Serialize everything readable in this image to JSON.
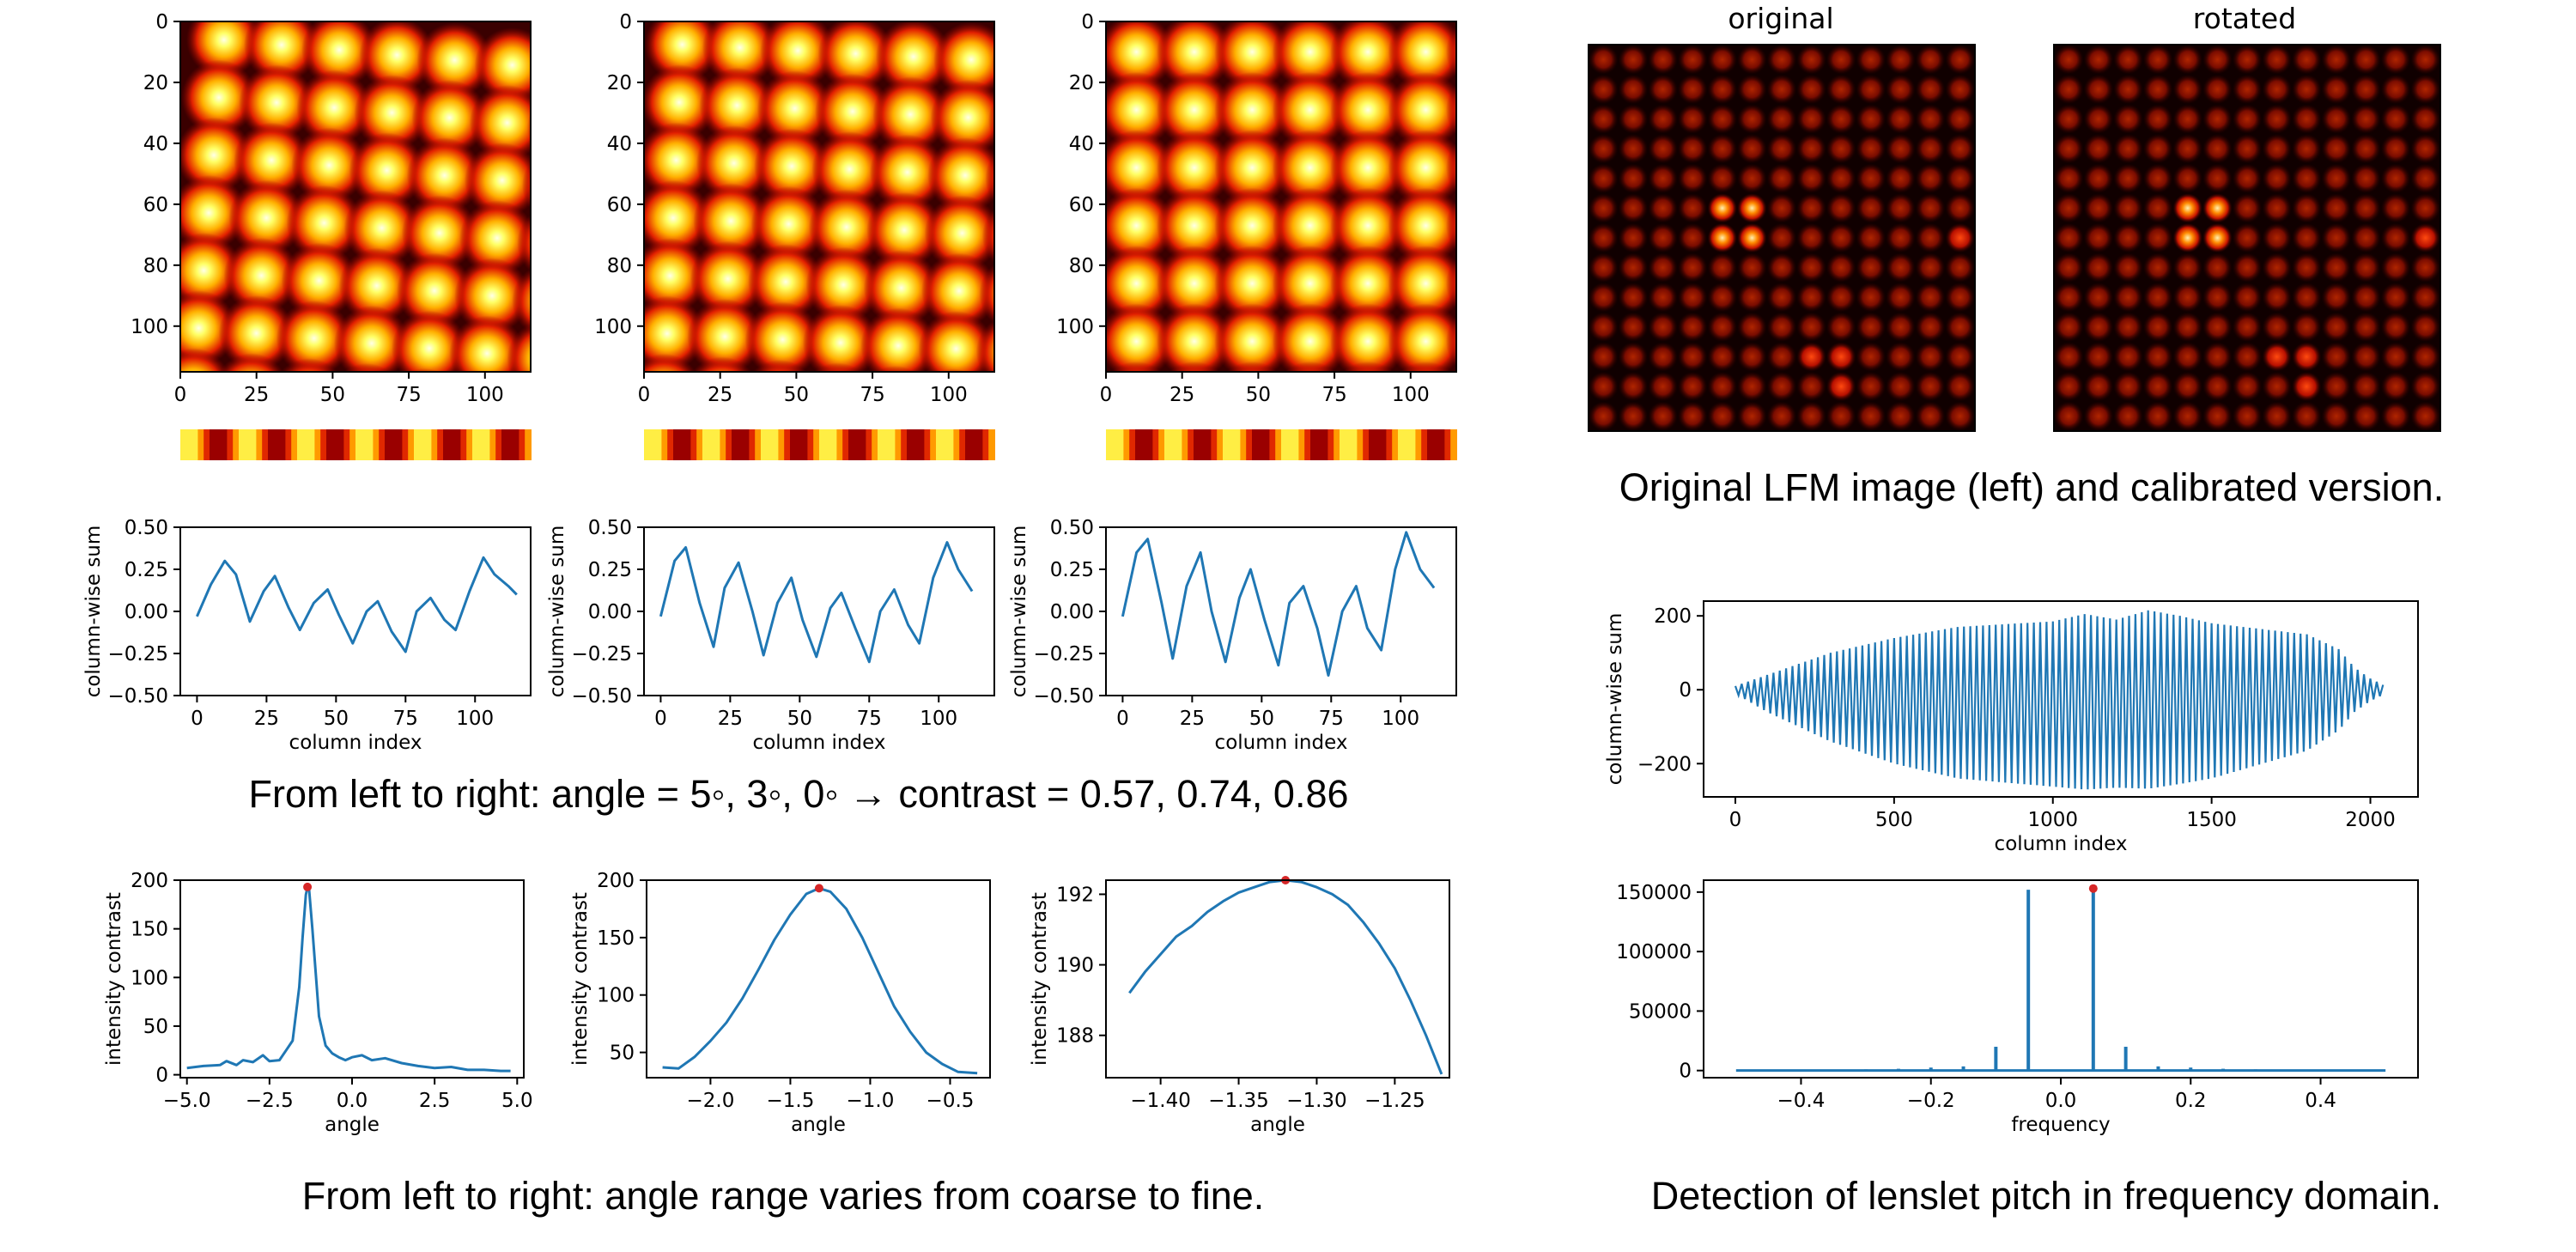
{
  "captions": {
    "contrast": "From left to right: angle = 5◦, 3◦, 0◦ → contrast = 0.57, 0.74, 0.86",
    "angle_range": "From left to right: angle range varies from coarse to fine.",
    "lfm": "Original LFM image (left) and calibrated version.",
    "pitch": "Detection of lenslet pitch in frequency domain."
  },
  "lfm_titles": {
    "original": "original",
    "rotated": "rotated"
  },
  "colors": {
    "line": "#1f77b4",
    "marker": "#d62728"
  },
  "chart_data": [
    {
      "id": "heatmap-angle5",
      "type": "heatmap",
      "title": "",
      "x_ticks": [
        "0",
        "25",
        "50",
        "75",
        "100"
      ],
      "y_ticks": [
        "0",
        "20",
        "40",
        "60",
        "80",
        "100"
      ],
      "xlim": [
        0,
        115
      ],
      "ylim": [
        0,
        115
      ],
      "colormap": "hot",
      "spot_grid": [
        6,
        6
      ],
      "rotation_deg": 5
    },
    {
      "id": "heatmap-angle3",
      "type": "heatmap",
      "title": "",
      "x_ticks": [
        "0",
        "25",
        "50",
        "75",
        "100"
      ],
      "y_ticks": [
        "0",
        "20",
        "40",
        "60",
        "80",
        "100"
      ],
      "xlim": [
        0,
        115
      ],
      "ylim": [
        0,
        115
      ],
      "colormap": "hot",
      "spot_grid": [
        6,
        6
      ],
      "rotation_deg": 3
    },
    {
      "id": "heatmap-angle0",
      "type": "heatmap",
      "title": "",
      "x_ticks": [
        "0",
        "25",
        "50",
        "75",
        "100"
      ],
      "y_ticks": [
        "0",
        "20",
        "40",
        "60",
        "80",
        "100"
      ],
      "xlim": [
        0,
        115
      ],
      "ylim": [
        0,
        115
      ],
      "colormap": "hot",
      "spot_grid": [
        6,
        6
      ],
      "rotation_deg": 0
    },
    {
      "id": "colsum-angle5",
      "type": "line",
      "xlabel": "column index",
      "ylabel": "column-wise sum",
      "xlim": [
        -6,
        120
      ],
      "ylim": [
        -0.5,
        0.5
      ],
      "x_ticks": [
        "0",
        "25",
        "50",
        "75",
        "100"
      ],
      "y_ticks": [
        "−0.50",
        "−0.25",
        "0.00",
        "0.25",
        "0.50"
      ],
      "x": [
        0,
        5,
        10,
        14,
        19,
        24,
        28,
        33,
        37,
        42,
        47,
        51,
        56,
        61,
        65,
        70,
        75,
        79,
        84,
        89,
        93,
        98,
        103,
        107,
        112,
        115
      ],
      "y": [
        -0.03,
        0.16,
        0.3,
        0.22,
        -0.06,
        0.12,
        0.21,
        0.02,
        -0.11,
        0.05,
        0.13,
        -0.02,
        -0.19,
        0.0,
        0.06,
        -0.12,
        -0.24,
        0.0,
        0.08,
        -0.05,
        -0.11,
        0.12,
        0.32,
        0.22,
        0.15,
        0.1
      ]
    },
    {
      "id": "colsum-angle3",
      "type": "line",
      "xlabel": "column index",
      "ylabel": "column-wise sum",
      "xlim": [
        -6,
        120
      ],
      "ylim": [
        -0.5,
        0.5
      ],
      "x_ticks": [
        "0",
        "25",
        "50",
        "75",
        "100"
      ],
      "y_ticks": [
        "−0.50",
        "−0.25",
        "0.00",
        "0.25",
        "0.50"
      ],
      "x": [
        0,
        5,
        9,
        14,
        19,
        23,
        28,
        33,
        37,
        42,
        47,
        51,
        56,
        61,
        65,
        70,
        75,
        79,
        84,
        89,
        93,
        98,
        103,
        107,
        112
      ],
      "y": [
        -0.03,
        0.3,
        0.38,
        0.05,
        -0.21,
        0.14,
        0.29,
        0.0,
        -0.26,
        0.05,
        0.2,
        -0.05,
        -0.27,
        0.02,
        0.11,
        -0.1,
        -0.3,
        0.0,
        0.13,
        -0.08,
        -0.19,
        0.2,
        0.41,
        0.25,
        0.12
      ]
    },
    {
      "id": "colsum-angle0",
      "type": "line",
      "xlabel": "column index",
      "ylabel": "column-wise sum",
      "xlim": [
        -6,
        120
      ],
      "ylim": [
        -0.5,
        0.5
      ],
      "x_ticks": [
        "0",
        "25",
        "50",
        "75",
        "100"
      ],
      "y_ticks": [
        "−0.50",
        "−0.25",
        "0.00",
        "0.25",
        "0.50"
      ],
      "x": [
        0,
        5,
        9,
        14,
        18,
        23,
        28,
        32,
        37,
        42,
        46,
        51,
        56,
        60,
        65,
        70,
        74,
        79,
        84,
        88,
        93,
        98,
        102,
        107,
        112
      ],
      "y": [
        -0.03,
        0.35,
        0.43,
        0.05,
        -0.28,
        0.15,
        0.35,
        0.0,
        -0.3,
        0.08,
        0.25,
        -0.05,
        -0.32,
        0.05,
        0.15,
        -0.1,
        -0.38,
        0.0,
        0.15,
        -0.1,
        -0.23,
        0.25,
        0.47,
        0.25,
        0.14
      ]
    },
    {
      "id": "contrast-coarse",
      "type": "line",
      "xlabel": "angle",
      "ylabel": "intensity contrast",
      "xlim": [
        -5.2,
        5.2
      ],
      "ylim": [
        -3,
        200
      ],
      "x_ticks": [
        "−5.0",
        "−2.5",
        "0.0",
        "2.5",
        "5.0"
      ],
      "y_ticks": [
        "0",
        "50",
        "100",
        "150",
        "200"
      ],
      "x": [
        -5.0,
        -4.5,
        -4.0,
        -3.8,
        -3.5,
        -3.3,
        -3.0,
        -2.7,
        -2.5,
        -2.2,
        -2.0,
        -1.8,
        -1.6,
        -1.5,
        -1.4,
        -1.35,
        -1.3,
        -1.2,
        -1.0,
        -0.8,
        -0.6,
        -0.4,
        -0.2,
        0.0,
        0.3,
        0.6,
        1.0,
        1.5,
        2.0,
        2.5,
        3.0,
        3.5,
        4.0,
        4.5,
        4.8
      ],
      "y": [
        7,
        9,
        10,
        14,
        10,
        15,
        13,
        20,
        14,
        15,
        25,
        35,
        90,
        140,
        185,
        193,
        190,
        150,
        60,
        30,
        22,
        18,
        15,
        18,
        20,
        15,
        17,
        12,
        9,
        7,
        8,
        5,
        5,
        4,
        4
      ],
      "peak": {
        "x": -1.35,
        "y": 193
      }
    },
    {
      "id": "contrast-medium",
      "type": "line",
      "xlabel": "angle",
      "ylabel": "intensity contrast",
      "xlim": [
        -2.4,
        -0.25
      ],
      "ylim": [
        28,
        200
      ],
      "x_ticks": [
        "−2.0",
        "−1.5",
        "−1.0",
        "−0.5"
      ],
      "y_ticks": [
        "50",
        "100",
        "150",
        "200"
      ],
      "x": [
        -2.3,
        -2.2,
        -2.1,
        -2.0,
        -1.9,
        -1.8,
        -1.7,
        -1.6,
        -1.5,
        -1.4,
        -1.32,
        -1.25,
        -1.15,
        -1.05,
        -0.95,
        -0.85,
        -0.75,
        -0.65,
        -0.55,
        -0.45,
        -0.33
      ],
      "y": [
        37,
        36,
        46,
        60,
        76,
        97,
        122,
        148,
        170,
        188,
        193,
        190,
        175,
        150,
        120,
        90,
        68,
        50,
        40,
        33,
        32
      ],
      "peak": {
        "x": -1.32,
        "y": 193
      }
    },
    {
      "id": "contrast-fine",
      "type": "line",
      "xlabel": "angle",
      "ylabel": "intensity contrast",
      "xlim": [
        -1.435,
        -1.215
      ],
      "ylim": [
        186.8,
        192.4
      ],
      "x_ticks": [
        "−1.40",
        "−1.35",
        "−1.30",
        "−1.25"
      ],
      "y_ticks": [
        "188",
        "190",
        "192"
      ],
      "x": [
        -1.42,
        -1.41,
        -1.4,
        -1.39,
        -1.38,
        -1.37,
        -1.36,
        -1.35,
        -1.34,
        -1.33,
        -1.32,
        -1.31,
        -1.3,
        -1.29,
        -1.28,
        -1.27,
        -1.26,
        -1.25,
        -1.24,
        -1.23,
        -1.22
      ],
      "y": [
        189.2,
        189.8,
        190.3,
        190.8,
        191.1,
        191.5,
        191.8,
        192.05,
        192.2,
        192.35,
        192.4,
        192.35,
        192.2,
        192.0,
        191.7,
        191.2,
        190.6,
        189.9,
        189.0,
        188.0,
        186.9
      ],
      "peak": {
        "x": -1.32,
        "y": 192.4
      }
    },
    {
      "id": "colsum-full",
      "type": "area",
      "xlabel": "column index",
      "ylabel": "column-wise sum",
      "xlim": [
        -100,
        2150
      ],
      "ylim": [
        -290,
        240
      ],
      "x_ticks": [
        "0",
        "500",
        "1000",
        "1500",
        "2000"
      ],
      "y_ticks": [
        "−200",
        "0",
        "200"
      ],
      "x": [
        0,
        100,
        300,
        500,
        700,
        900,
        1000,
        1100,
        1200,
        1300,
        1400,
        1500,
        1600,
        1700,
        1800,
        1900,
        1950,
        2000,
        2048
      ],
      "y_upper": [
        10,
        40,
        100,
        140,
        170,
        180,
        185,
        205,
        190,
        215,
        200,
        180,
        170,
        160,
        150,
        110,
        60,
        30,
        10
      ],
      "y_lower": [
        -10,
        -60,
        -140,
        -200,
        -240,
        -255,
        -262,
        -270,
        -265,
        -268,
        -255,
        -240,
        -215,
        -190,
        -165,
        -110,
        -60,
        -30,
        -10
      ]
    },
    {
      "id": "spectrum",
      "type": "line",
      "xlabel": "frequency",
      "ylabel": "",
      "xlim": [
        -0.55,
        0.55
      ],
      "ylim": [
        -6000,
        160000
      ],
      "x_ticks": [
        "−0.4",
        "−0.2",
        "0.0",
        "0.2",
        "0.4"
      ],
      "y_ticks": [
        "0",
        "50000",
        "100000",
        "150000"
      ],
      "baseline": 0,
      "x_range": [
        -0.5,
        0.5
      ],
      "peaks": [
        {
          "x": -0.3,
          "y": 1000
        },
        {
          "x": -0.25,
          "y": 1500
        },
        {
          "x": -0.2,
          "y": 2500
        },
        {
          "x": -0.15,
          "y": 3500
        },
        {
          "x": -0.1,
          "y": 20000
        },
        {
          "x": -0.05,
          "y": 152000
        },
        {
          "x": 0.05,
          "y": 153000
        },
        {
          "x": 0.1,
          "y": 20000
        },
        {
          "x": 0.15,
          "y": 3500
        },
        {
          "x": 0.2,
          "y": 2500
        },
        {
          "x": 0.25,
          "y": 1500
        },
        {
          "x": 0.3,
          "y": 1000
        }
      ],
      "peak_marker": {
        "x": 0.05,
        "y": 153000
      }
    }
  ]
}
